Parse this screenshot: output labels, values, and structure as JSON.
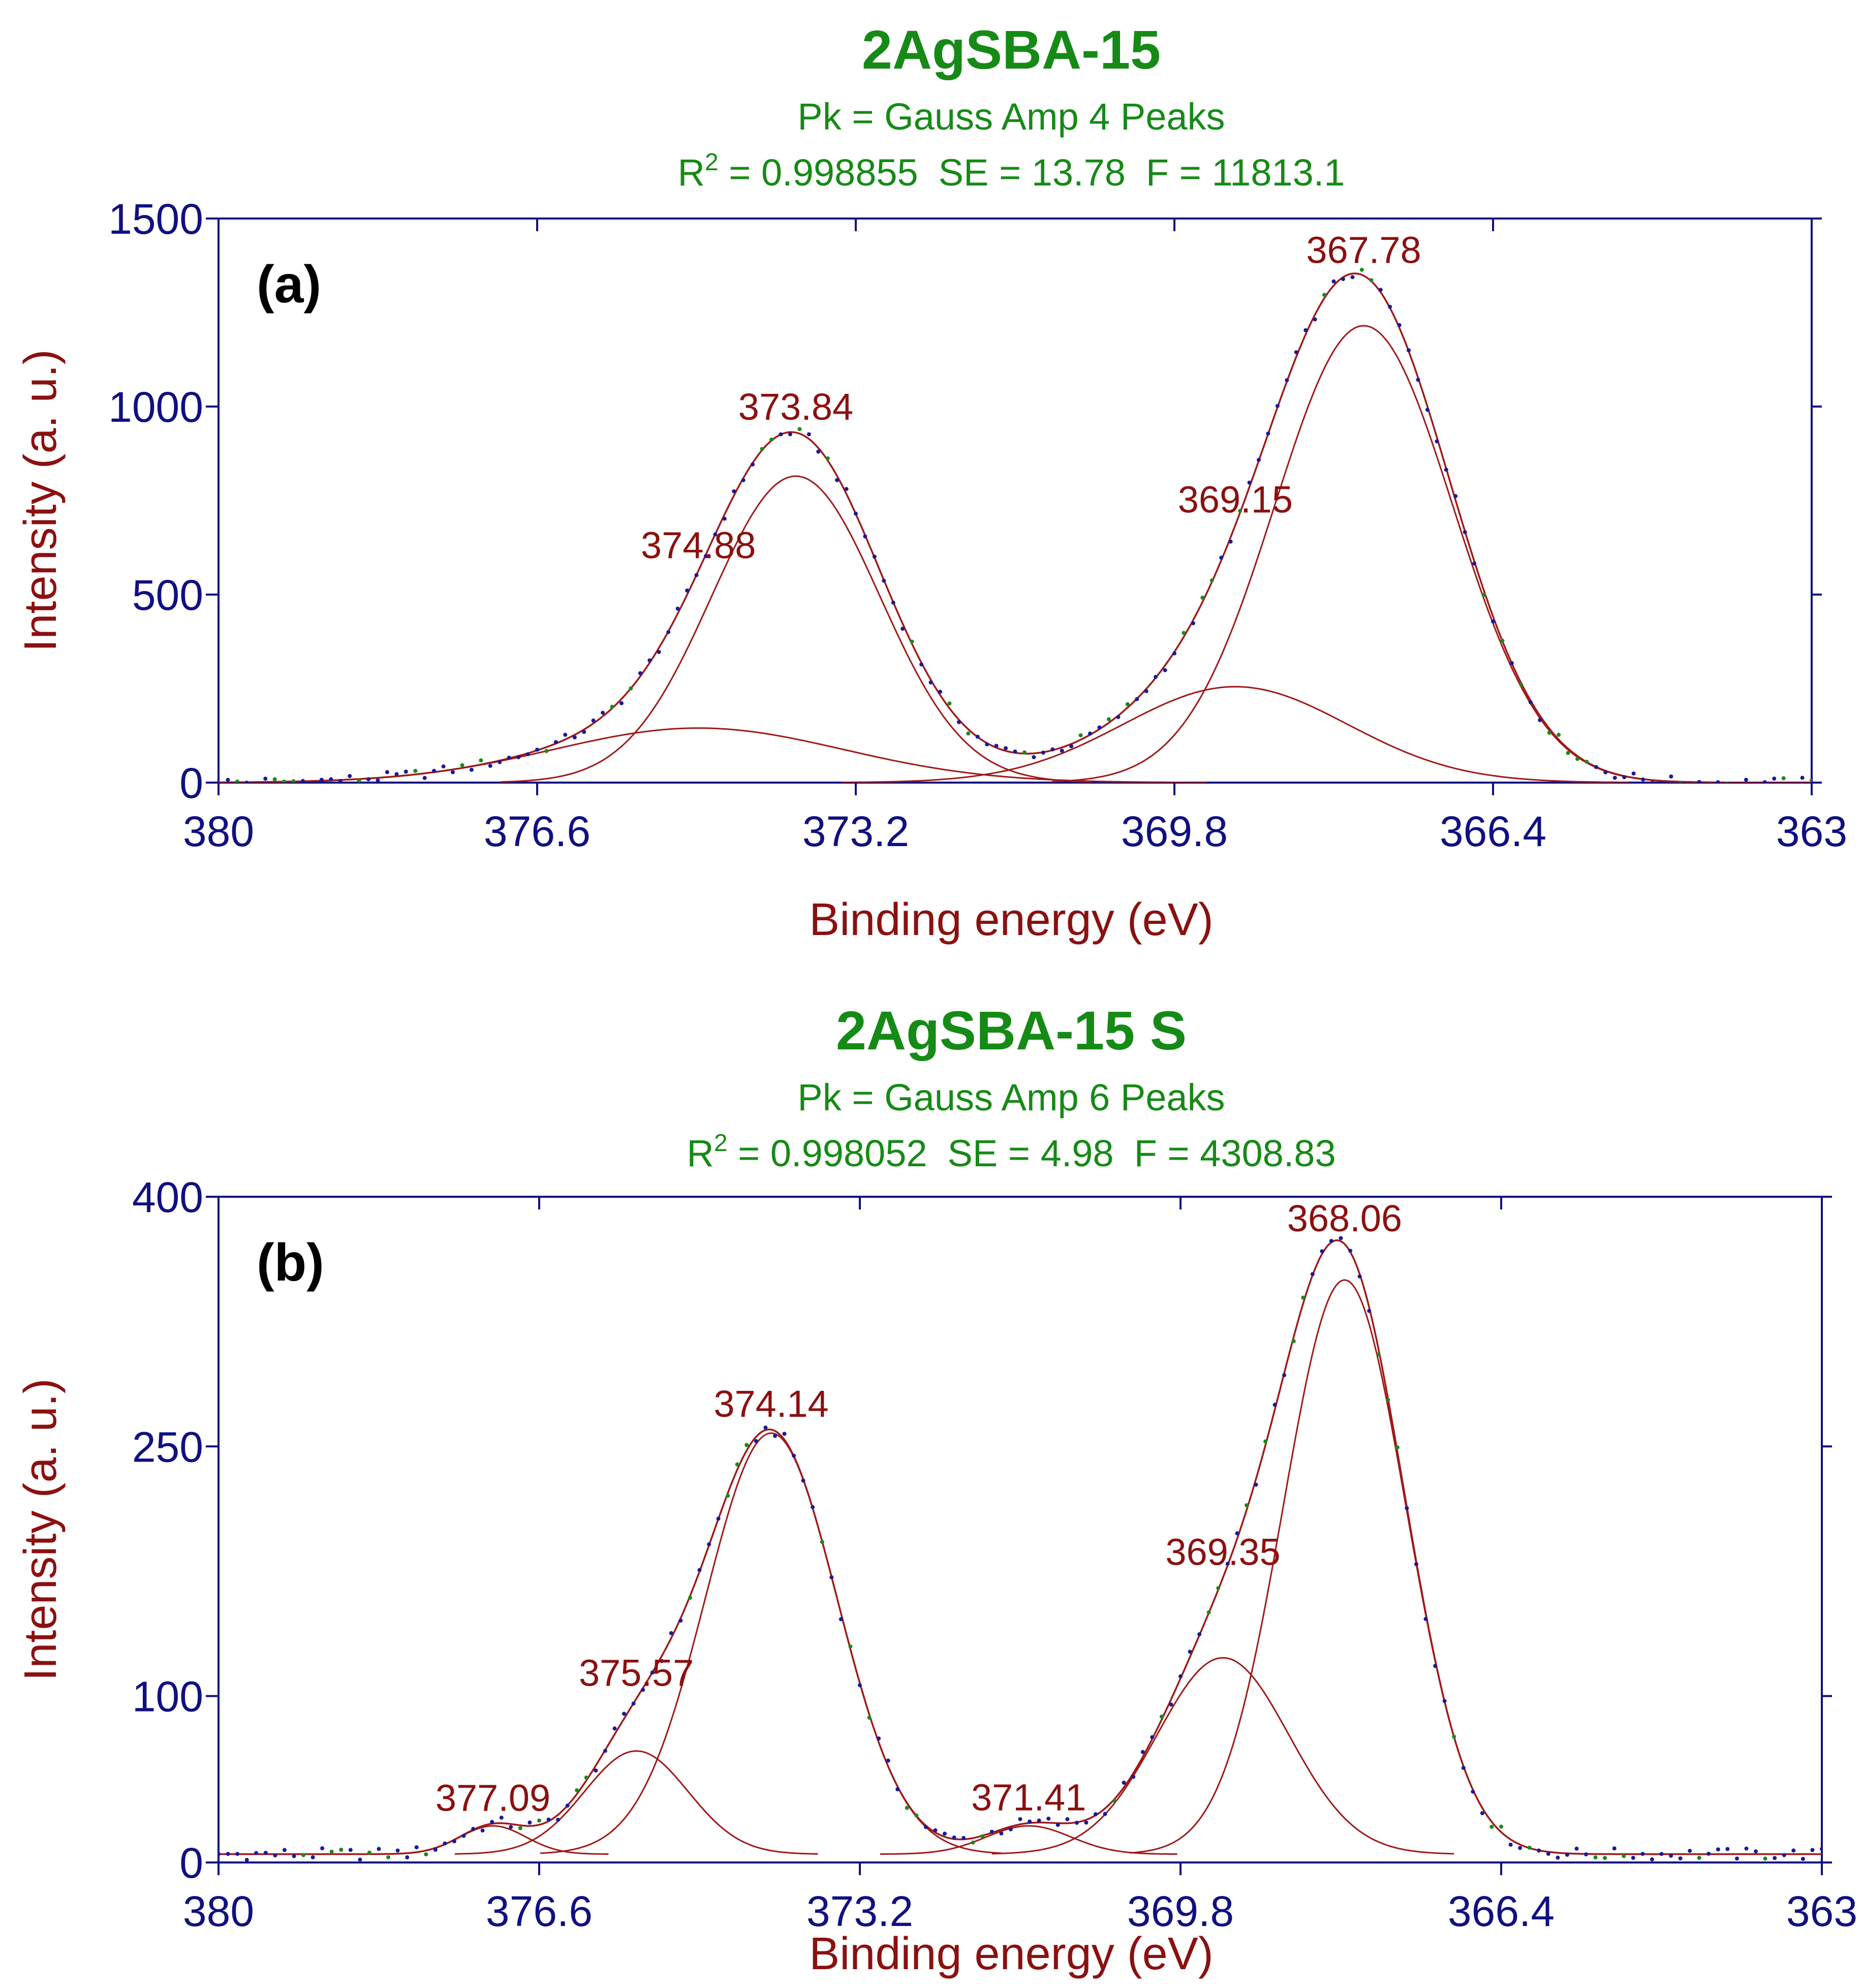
{
  "colors": {
    "title": "#168a16",
    "axis": "#101081",
    "label": "#8b1010",
    "curve": "#a01818",
    "data_points": "#1a1a9a",
    "residual": "#1a8a1a"
  },
  "chart_data": [
    {
      "type": "line",
      "title": "2AgSBA-15",
      "subtitle": "Pk = Gauss Amp  4 Peaks",
      "fit_stats": {
        "r2_label": "R",
        "r2_sup": "2",
        "r2_value": " = 0.998855",
        "se": "SE = 13.78",
        "f": "F = 11813.1"
      },
      "panel_label": "(a)",
      "xlabel": "Binding energy (eV)",
      "ylabel": "Intensity (a. u.)",
      "xlim": [
        380,
        363
      ],
      "ylim": [
        0,
        1500
      ],
      "x_ticks": [
        "380",
        "376.6",
        "373.2",
        "369.8",
        "366.4",
        "363"
      ],
      "y_ticks": [
        "0",
        "500",
        "1000",
        "1500"
      ],
      "baseline": 0,
      "peaks": [
        {
          "label": "374.88",
          "center": 374.88,
          "amplitude": 145,
          "sigma": 1.55
        },
        {
          "label": "373.84",
          "center": 373.84,
          "amplitude": 815,
          "sigma": 0.9
        },
        {
          "label": "369.15",
          "center": 369.15,
          "amplitude": 255,
          "sigma": 1.2
        },
        {
          "label": "367.78",
          "center": 367.78,
          "amplitude": 1215,
          "sigma": 0.95
        }
      ]
    },
    {
      "type": "line",
      "title": "2AgSBA-15 S",
      "subtitle": "Pk = Gauss Amp  6 Peaks",
      "fit_stats": {
        "r2_label": "R",
        "r2_sup": "2",
        "r2_value": " = 0.998052",
        "se": "SE = 4.98",
        "f": "F = 4308.83"
      },
      "panel_label": "(b)",
      "xlabel": "Binding energy (eV)",
      "ylabel": "Intensity (a. u.)",
      "xlim": [
        380,
        363
      ],
      "ylim": [
        0,
        400
      ],
      "x_ticks": [
        "380",
        "376.6",
        "373.2",
        "369.8",
        "366.4",
        "363"
      ],
      "y_ticks": [
        "0",
        "100",
        "250",
        "400"
      ],
      "baseline": 5,
      "peaks": [
        {
          "label": "377.09",
          "center": 377.09,
          "amplitude": 17,
          "sigma": 0.35
        },
        {
          "label": "375.57",
          "center": 375.57,
          "amplitude": 62,
          "sigma": 0.55
        },
        {
          "label": "374.14",
          "center": 374.14,
          "amplitude": 253,
          "sigma": 0.7
        },
        {
          "label": "371.41",
          "center": 371.41,
          "amplitude": 17,
          "sigma": 0.45
        },
        {
          "label": "369.35",
          "center": 369.35,
          "amplitude": 118,
          "sigma": 0.7
        },
        {
          "label": "368.06",
          "center": 368.06,
          "amplitude": 345,
          "sigma": 0.65
        }
      ]
    }
  ]
}
